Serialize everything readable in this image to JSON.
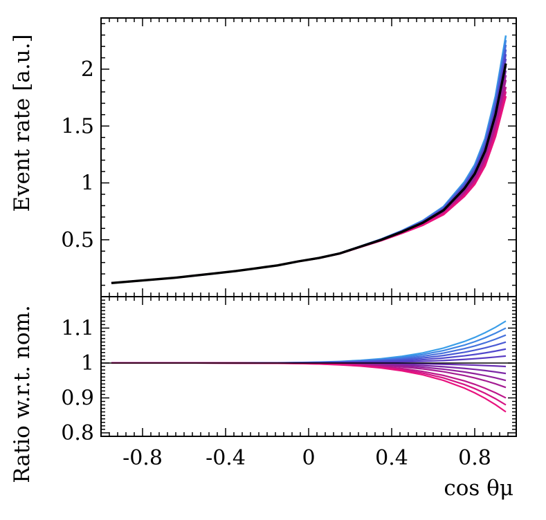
{
  "chart_data": [
    {
      "type": "line",
      "panel": "top",
      "ylabel": "Event rate [a.u.]",
      "xlim": [
        -1.0,
        1.0
      ],
      "ylim": [
        0.0,
        2.45
      ],
      "x_ticks": [
        -0.8,
        -0.4,
        0,
        0.4,
        0.8
      ],
      "y_ticks": [
        0.5,
        1,
        1.5,
        2
      ],
      "y_tick_labels": [
        "0.5",
        "1",
        "1.5",
        "2"
      ],
      "x": [
        -0.95,
        -0.85,
        -0.75,
        -0.65,
        -0.55,
        -0.45,
        -0.35,
        -0.25,
        -0.15,
        -0.05,
        0.05,
        0.15,
        0.25,
        0.35,
        0.45,
        0.55,
        0.65,
        0.75,
        0.8,
        0.85,
        0.9,
        0.95
      ],
      "nominal": {
        "color": "#000000",
        "values": [
          0.12,
          0.135,
          0.15,
          0.165,
          0.185,
          0.205,
          0.225,
          0.25,
          0.275,
          0.31,
          0.34,
          0.38,
          0.44,
          0.5,
          0.57,
          0.65,
          0.76,
          0.95,
          1.08,
          1.28,
          1.6,
          2.05
        ]
      },
      "variation_ratio_end": [
        1.12,
        1.1,
        1.08,
        1.06,
        1.04,
        1.02,
        0.99,
        0.97,
        0.95,
        0.93,
        0.9,
        0.88,
        0.86
      ],
      "variation_colors": [
        "#3b9ee8",
        "#3f86e4",
        "#4570dc",
        "#4a5ad4",
        "#5048cc",
        "#5a3cc2",
        "#6a30b4",
        "#7c28a6",
        "#90229c",
        "#a41c92",
        "#bc168a",
        "#d41484",
        "#e8127e"
      ]
    },
    {
      "type": "line",
      "panel": "bottom",
      "xlabel": "cos θμ",
      "ylabel": "Ratio w.r.t. nom.",
      "xlim": [
        -1.0,
        1.0
      ],
      "ylim": [
        0.79,
        1.19
      ],
      "x_ticks": [
        -0.8,
        -0.4,
        0,
        0.4,
        0.8
      ],
      "x_tick_labels": [
        "-0.8",
        "-0.4",
        "0",
        "0.4",
        "0.8"
      ],
      "y_ticks": [
        0.8,
        0.9,
        1,
        1.1
      ],
      "y_tick_labels": [
        "0.8",
        "0.9",
        "1",
        "1.1"
      ],
      "reference_line": 1.0
    }
  ]
}
